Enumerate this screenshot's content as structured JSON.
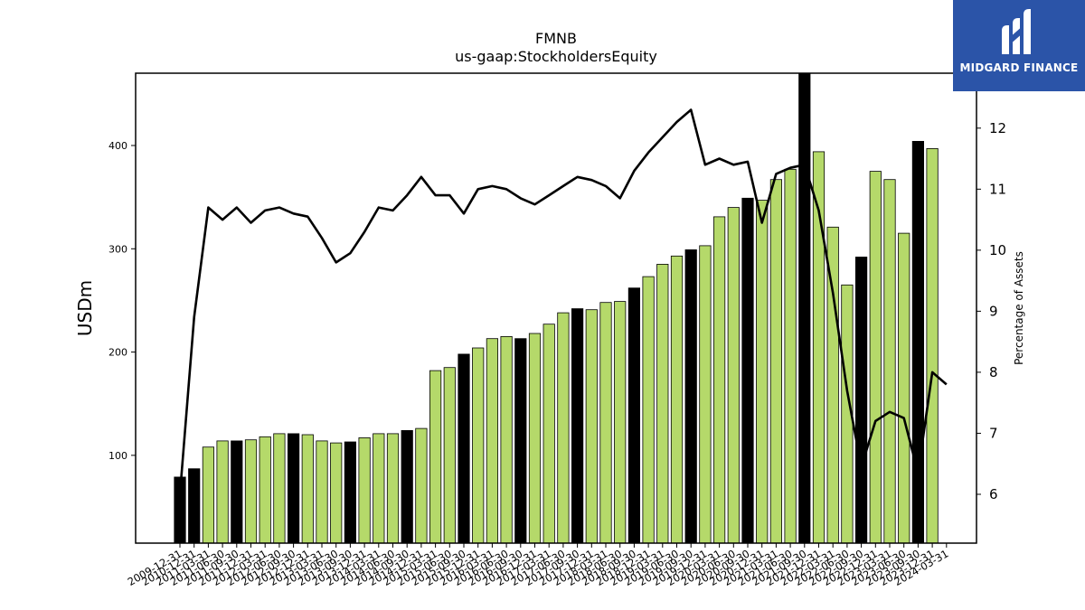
{
  "logo": {
    "brand": "MIDGARD FINANCE"
  },
  "chart_data": {
    "type": "bar",
    "title": "FMNB",
    "subtitle": "us-gaap:StockholdersEquity",
    "ylabel": "USDm",
    "y2label": "Percentage of Assets",
    "ylim": [
      15,
      470
    ],
    "y2lim": [
      5.2,
      12.9
    ],
    "yticks": [
      100,
      200,
      300,
      400
    ],
    "y2ticks": [
      6,
      7,
      8,
      9,
      10,
      11,
      12
    ],
    "grid": false,
    "colors": {
      "annual": "#000000",
      "quarterly": "#b5d96a",
      "line": "#000000"
    },
    "categories": [
      "2009-12-31",
      "2010-12-31",
      "2011-03-31",
      "2011-06-30",
      "2011-09-30",
      "2011-12-31",
      "2012-03-31",
      "2012-06-30",
      "2012-09-30",
      "2012-12-31",
      "2013-03-31",
      "2013-06-30",
      "2013-09-30",
      "2013-12-31",
      "2014-03-31",
      "2014-06-30",
      "2014-09-30",
      "2014-12-31",
      "2015-03-31",
      "2015-06-30",
      "2015-09-30",
      "2015-12-31",
      "2016-03-31",
      "2016-06-30",
      "2016-09-30",
      "2016-12-31",
      "2017-03-31",
      "2017-06-30",
      "2017-09-30",
      "2017-12-31",
      "2018-03-31",
      "2018-06-30",
      "2018-09-30",
      "2018-12-31",
      "2019-03-31",
      "2019-06-30",
      "2019-09-30",
      "2019-12-31",
      "2020-03-31",
      "2020-06-30",
      "2020-09-30",
      "2020-12-31",
      "2021-03-31",
      "2021-06-30",
      "2021-09-30",
      "2021-12-31",
      "2022-03-31",
      "2022-06-30",
      "2022-09-30",
      "2022-12-31",
      "2023-03-31",
      "2023-06-30",
      "2023-09-30",
      "2023-12-31",
      "2024-03-31"
    ],
    "values": [
      79,
      87,
      108,
      114,
      114,
      115,
      118,
      121,
      121,
      120,
      114,
      112,
      113,
      117,
      121,
      121,
      124,
      126,
      182,
      185,
      198,
      204,
      213,
      215,
      213,
      218,
      227,
      238,
      242,
      241,
      248,
      249,
      262,
      273,
      285,
      293,
      299,
      303,
      331,
      340,
      349,
      347,
      367,
      377,
      470,
      394,
      321,
      265,
      292,
      375,
      367,
      315,
      404,
      397,
      0
    ],
    "annual": [
      true,
      true,
      false,
      false,
      true,
      false,
      false,
      false,
      true,
      false,
      false,
      false,
      true,
      false,
      false,
      false,
      true,
      false,
      false,
      false,
      true,
      false,
      false,
      false,
      true,
      false,
      false,
      false,
      true,
      false,
      false,
      false,
      true,
      false,
      false,
      false,
      true,
      false,
      false,
      false,
      true,
      false,
      false,
      false,
      true,
      false,
      false,
      false,
      true,
      false,
      false,
      false,
      true,
      false,
      false
    ],
    "series": [
      {
        "name": "",
        "axis": "right",
        "values": [
          6.0,
          8.9,
          10.7,
          10.5,
          10.7,
          10.45,
          10.65,
          10.7,
          10.6,
          10.55,
          10.2,
          9.8,
          9.95,
          10.3,
          10.7,
          10.65,
          10.9,
          11.2,
          10.9,
          10.9,
          10.6,
          11.0,
          11.05,
          11.0,
          10.85,
          10.75,
          10.9,
          11.05,
          11.2,
          11.15,
          11.05,
          10.85,
          11.3,
          11.6,
          11.85,
          12.1,
          12.3,
          11.4,
          11.5,
          11.4,
          11.45,
          10.45,
          11.25,
          11.35,
          11.4,
          10.65,
          9.3,
          7.7,
          6.45,
          7.2,
          7.35,
          7.25,
          6.35,
          8.0,
          7.8
        ]
      }
    ]
  }
}
